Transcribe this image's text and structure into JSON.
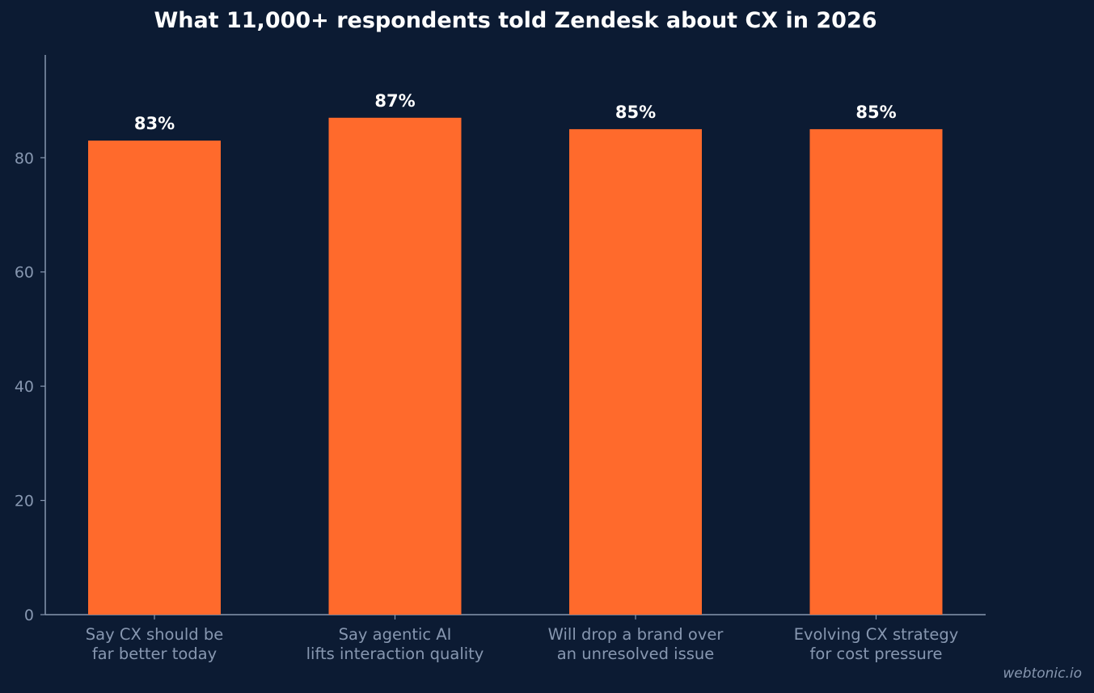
{
  "chart_data": {
    "type": "bar",
    "title": "What 11,000+ respondents told Zendesk about CX in 2026",
    "categories": [
      [
        "Say CX should be",
        "far better today"
      ],
      [
        "Say agentic AI",
        "lifts interaction quality"
      ],
      [
        "Will drop a brand over",
        "an unresolved issue"
      ],
      [
        "Evolving CX strategy",
        "for cost pressure"
      ]
    ],
    "values": [
      83,
      87,
      85,
      85
    ],
    "data_labels": [
      "83%",
      "87%",
      "85%",
      "85%"
    ],
    "xlabel": "",
    "ylabel": "",
    "ylim": [
      0,
      98
    ],
    "yticks": [
      0,
      20,
      40,
      60,
      80
    ],
    "grid": false,
    "bar_color": "#ff6a2c",
    "background_color": "#0c1b33",
    "axis_color": "#8797b0"
  },
  "watermark": "webtonic.io"
}
